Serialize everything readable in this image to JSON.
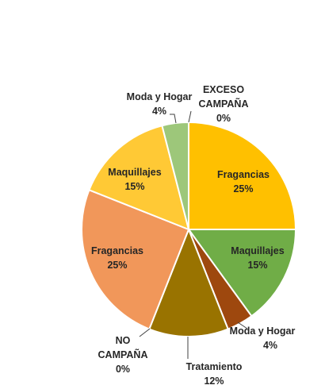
{
  "chart_data": {
    "type": "pie",
    "title": "",
    "slices": [
      {
        "label": "Fragancias",
        "value": 25,
        "display": "25%",
        "color": "#FFC000"
      },
      {
        "label": "Maquillajes",
        "value": 15,
        "display": "15%",
        "color": "#70AD47"
      },
      {
        "label": "Moda y Hogar",
        "value": 4,
        "display": "4%",
        "color": "#9E480E"
      },
      {
        "label": "Tratamiento",
        "value": 12,
        "display": "12%",
        "color": "#997300"
      },
      {
        "label": "NO CAMPAÑA",
        "value": 0,
        "display": "0%",
        "color": "#5B9BD5"
      },
      {
        "label": "Fragancias",
        "value": 25,
        "display": "25%",
        "color": "#F1975A"
      },
      {
        "label": "Maquillajes",
        "value": 15,
        "display": "15%",
        "color": "#FFC935"
      },
      {
        "label": "Moda y Hogar",
        "value": 4,
        "display": "4%",
        "color": "#9DC77A"
      },
      {
        "label": "EXCESO CAMPAÑA",
        "value": 0,
        "display": "0%",
        "color": "#264478"
      }
    ]
  }
}
